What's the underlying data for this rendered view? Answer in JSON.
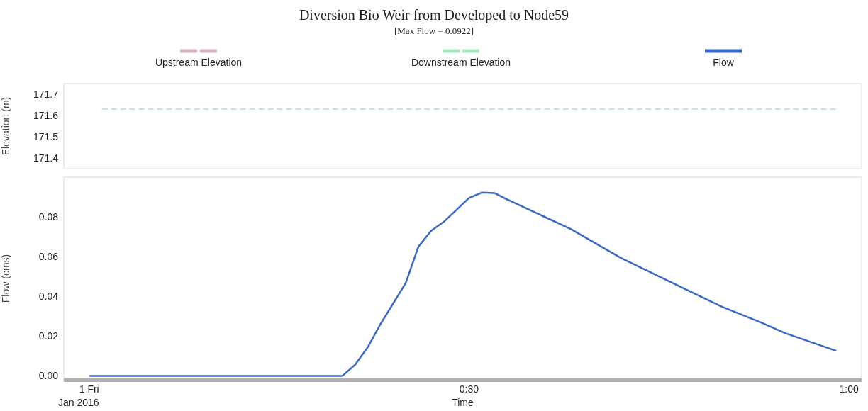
{
  "chart_data": [
    {
      "type": "line",
      "title": "Diversion Bio Weir from Developed to Node59",
      "subtitle": "[Max Flow = 0.0922]",
      "ylabel": "Elevation (m)",
      "xlim": [
        "2015-12-31T23:58",
        "2016-01-01T01:01"
      ],
      "ylim": [
        171.35,
        171.75
      ],
      "yticks": [
        171.4,
        171.5,
        171.6,
        171.7
      ],
      "tick_labels": "y",
      "grid": false,
      "legend": "top",
      "marker": "none",
      "x": [
        "2016-01-01T00:01",
        "2016-01-01T00:59"
      ],
      "series": [
        {
          "name": "Upstream Elevation",
          "color": "#d8b4bc",
          "line_style": "dashed",
          "values": [
            null,
            null
          ]
        },
        {
          "name": "Downstream Elevation",
          "color": "#a6e8bc",
          "line_style": "dashed",
          "values": [
            171.63,
            171.63
          ]
        }
      ]
    },
    {
      "type": "line",
      "xlabel": "Time",
      "ylabel": "Flow (cms)",
      "xlim": [
        "2015-12-31T23:58",
        "2016-01-01T01:01"
      ],
      "xticks": [
        {
          "value": "2016-01-01T00:00",
          "label": "1 Fri"
        },
        {
          "value": "2016-01-01T00:30",
          "label": "0:30"
        },
        {
          "value": "2016-01-01T01:00",
          "label": "1:00"
        }
      ],
      "ylim": [
        -0.002,
        0.1
      ],
      "yticks": [
        {
          "value": 0,
          "label": "0.00"
        },
        {
          "value": 0.02,
          "label": "0.02"
        },
        {
          "value": 0.04,
          "label": "0.04"
        },
        {
          "value": 0.06,
          "label": "0.06"
        },
        {
          "value": 0.08,
          "label": "0.08"
        }
      ],
      "grid": false,
      "legend": "top",
      "marker": "none",
      "annotations": [
        "Jan 2016"
      ],
      "x": [
        "2016-01-01T00:00",
        "2016-01-01T00:20",
        "2016-01-01T00:21",
        "2016-01-01T00:22",
        "2016-01-01T00:23",
        "2016-01-01T00:25",
        "2016-01-01T00:26",
        "2016-01-01T00:27",
        "2016-01-01T00:28",
        "2016-01-01T00:30",
        "2016-01-01T00:31",
        "2016-01-01T00:32",
        "2016-01-01T00:33",
        "2016-01-01T00:38",
        "2016-01-01T00:42",
        "2016-01-01T00:47",
        "2016-01-01T00:50",
        "2016-01-01T00:53",
        "2016-01-01T00:55",
        "2016-01-01T00:59"
      ],
      "series": [
        {
          "name": "Flow",
          "color": "#3a68c8",
          "line_style": "solid",
          "values": [
            0,
            0,
            0.0056,
            0.0144,
            0.026,
            0.0467,
            0.065,
            0.073,
            0.0775,
            0.0895,
            0.0922,
            0.092,
            0.0888,
            0.074,
            0.0593,
            0.0439,
            0.0347,
            0.027,
            0.0214,
            0.0126
          ]
        }
      ]
    }
  ]
}
